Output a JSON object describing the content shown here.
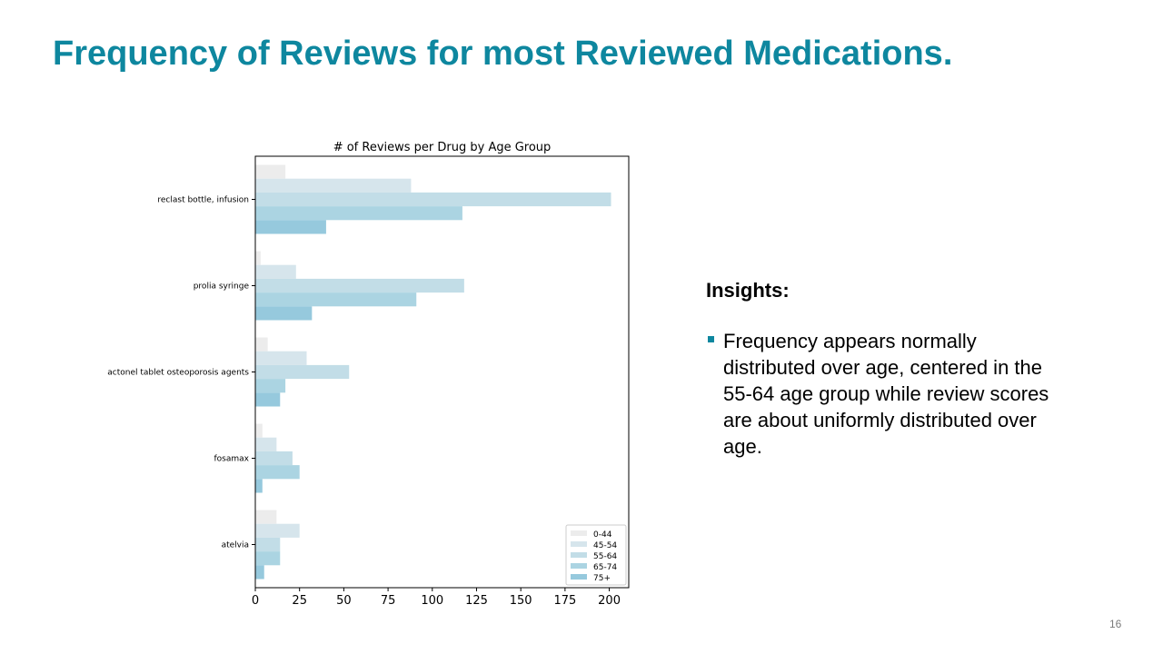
{
  "slide": {
    "title": "Frequency of Reviews for most Reviewed Medications.",
    "page_number": "16"
  },
  "insights": {
    "heading": "Insights:",
    "bullets": [
      "Frequency appears normally distributed over age, centered in the 55-64 age group while review scores are about uniformly distributed over age."
    ]
  },
  "chart_data": {
    "type": "bar",
    "orientation": "horizontal",
    "title": "# of Reviews per Drug by Age Group",
    "xlabel": "",
    "ylabel": "",
    "categories": [
      "reclast bottle, infusion",
      "prolia syringe",
      "actonel tablet osteoporosis agents",
      "fosamax",
      "atelvia"
    ],
    "series": [
      {
        "name": "0-44",
        "color": "#ececec",
        "values": [
          17,
          3,
          7,
          4,
          12
        ]
      },
      {
        "name": "45-54",
        "color": "#d6e5ec",
        "values": [
          88,
          23,
          29,
          12,
          25
        ]
      },
      {
        "name": "55-64",
        "color": "#c2dde7",
        "values": [
          201,
          118,
          53,
          21,
          14
        ]
      },
      {
        "name": "65-74",
        "color": "#abd4e2",
        "values": [
          117,
          91,
          17,
          25,
          14
        ]
      },
      {
        "name": "75+",
        "color": "#96c9dd",
        "values": [
          40,
          32,
          14,
          4,
          5
        ]
      }
    ],
    "xticks": [
      0,
      25,
      50,
      75,
      100,
      125,
      150,
      175,
      200
    ],
    "xlim": [
      0,
      211
    ],
    "grid": false,
    "legend": "lower right"
  }
}
